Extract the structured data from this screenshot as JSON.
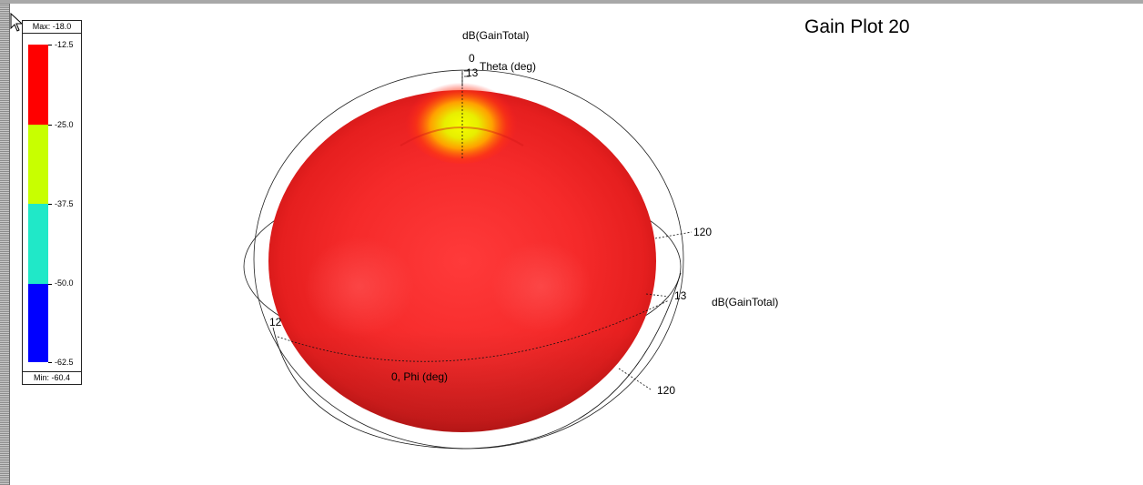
{
  "title": "Gain Plot 20",
  "legend": {
    "max_label": "Max: -18.0",
    "min_label": "Min: -60.4",
    "ticks": [
      "-12.5",
      "-25.0",
      "-37.5",
      "-50.0",
      "-62.5"
    ],
    "colors": [
      "#ff0000",
      "#c8ff00",
      "#20e8c8",
      "#0000ff"
    ]
  },
  "annotations": {
    "quantity_top": "dB(GainTotal)",
    "theta_zero": "0",
    "theta_axis": "Theta (deg)",
    "theta_radius": "13",
    "right_120": "120",
    "right_radius": "13",
    "quantity_right": "dB(GainTotal)",
    "left_120": "12",
    "phi_axis": "0, Phi (deg)",
    "bottom_120": "120"
  },
  "chart_data": {
    "type": "3d-polar-surface",
    "title": "Gain Plot 20",
    "quantity": "dB(GainTotal)",
    "colorbar": {
      "max": -18.0,
      "min": -60.4,
      "ticks": [
        -12.5,
        -25.0,
        -37.5,
        -50.0,
        -62.5
      ]
    },
    "axes": {
      "theta": {
        "label": "Theta (deg)",
        "ticks": [
          0,
          120
        ]
      },
      "phi": {
        "label": "Phi (deg)",
        "ticks": [
          0,
          120
        ]
      },
      "radial": {
        "label": "dB(GainTotal)",
        "ticks": [
          13
        ]
      }
    }
  },
  "cursor_icon": "arrow-cursor"
}
